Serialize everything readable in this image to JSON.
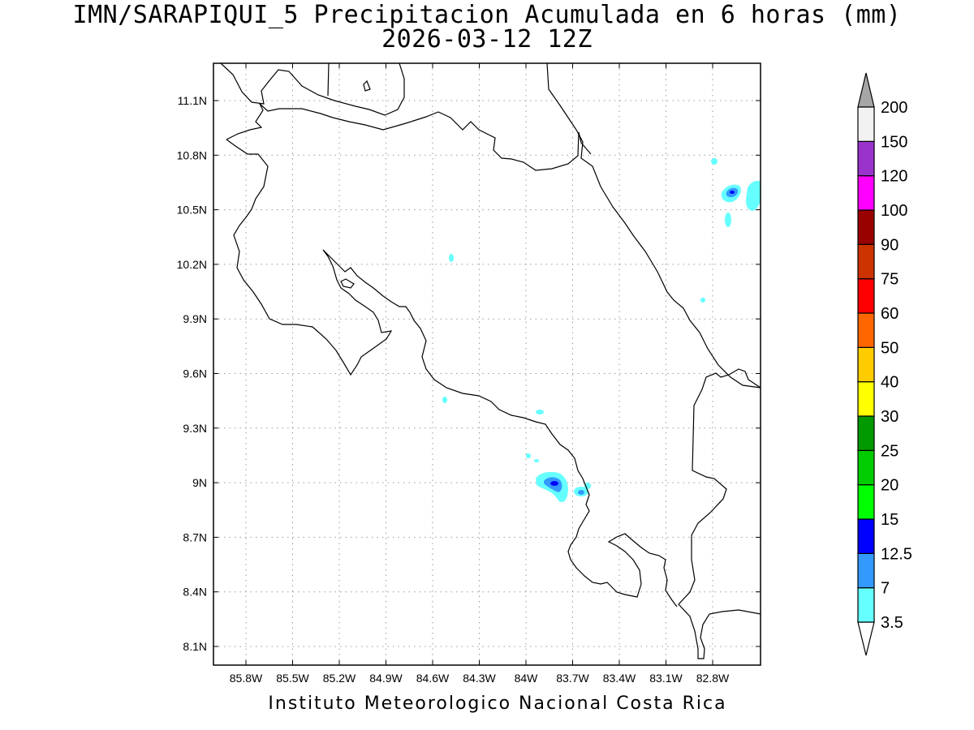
{
  "title": {
    "line1": "IMN/SARAPIQUI_5 Precipitacion Acumulada en 6 horas (mm)",
    "line2": "2026-03-12 12Z"
  },
  "credit": "Instituto Meteorologico Nacional Costa Rica",
  "map": {
    "lon_range": [
      -86.0,
      -83.0
    ],
    "lat_range": [
      8.0,
      11.3
    ],
    "grid": "dotted",
    "lon_ticks": [
      "85.8W",
      "85.5W",
      "85.2W",
      "84.9W",
      "84.6W",
      "84.3W",
      "84W",
      "83.7W",
      "83.4W",
      "83.1W",
      "82.8W"
    ],
    "lat_ticks": [
      "11.1N",
      "10.8N",
      "10.5N",
      "10.2N",
      "9.9N",
      "9.6N",
      "9.3N",
      "9N",
      "8.7N",
      "8.4N",
      "8.1N"
    ]
  },
  "colorbar": {
    "levels": [
      "3.5",
      "7",
      "12.5",
      "15",
      "20",
      "25",
      "30",
      "40",
      "50",
      "60",
      "75",
      "90",
      "100",
      "120",
      "150",
      "200"
    ],
    "colors": [
      "#66ffff",
      "#3399ff",
      "#0000ff",
      "#00ff00",
      "#00cc00",
      "#009900",
      "#ffff00",
      "#ffcc00",
      "#ff6600",
      "#ff0000",
      "#cc3300",
      "#990000",
      "#ff00ff",
      "#9933cc",
      "#f2f2f2",
      "#a6a6a6"
    ]
  },
  "precip_cells": [
    {
      "lon": -83.79,
      "lat": 8.99,
      "value": 12.5
    },
    {
      "lon": -83.65,
      "lat": 8.93,
      "value": 7
    },
    {
      "lon": -82.74,
      "lat": 10.6,
      "value": 12.5
    },
    {
      "lon": -82.62,
      "lat": 10.6,
      "value": 3.5
    },
    {
      "lon": -84.48,
      "lat": 10.24,
      "value": 3.5
    },
    {
      "lon": -84.52,
      "lat": 9.46,
      "value": 3.5
    },
    {
      "lon": -83.92,
      "lat": 9.39,
      "value": 3.5
    },
    {
      "lon": -83.98,
      "lat": 9.15,
      "value": 3.5
    },
    {
      "lon": -82.86,
      "lat": 10.02,
      "value": 3.5
    },
    {
      "lon": -82.8,
      "lat": 10.77,
      "value": 3.5
    }
  ]
}
